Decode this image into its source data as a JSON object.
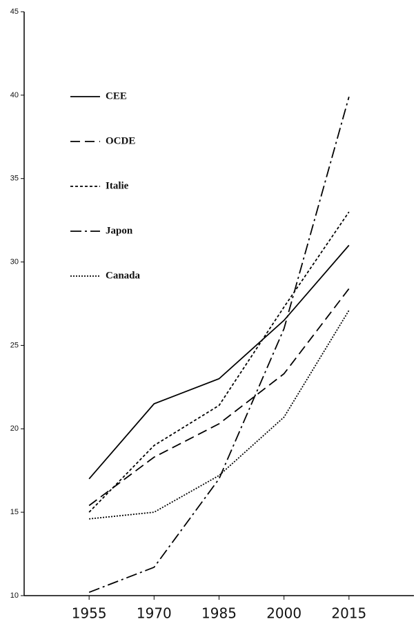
{
  "chart_data": {
    "type": "line",
    "x": [
      1955,
      1970,
      1985,
      2000,
      2015
    ],
    "xlim": [
      1940,
      2030
    ],
    "xticks": [
      1955,
      1970,
      1985,
      2000,
      2015
    ],
    "ylim": [
      10,
      45
    ],
    "yticks": [
      10,
      15,
      20,
      25,
      30,
      35,
      40,
      45
    ],
    "legend": "upper left",
    "series": [
      {
        "name": "CEE",
        "color": "#000000",
        "values": [
          17.0,
          21.5,
          23.0,
          26.5,
          31.0
        ]
      },
      {
        "name": "OCDE",
        "color": "#000000",
        "values": [
          15.4,
          18.3,
          20.3,
          23.3,
          28.4
        ]
      },
      {
        "name": "Italie",
        "color": "#000000",
        "values": [
          15.0,
          19.0,
          21.4,
          27.3,
          33.0
        ]
      },
      {
        "name": "Japon",
        "color": "#000000",
        "values": [
          10.2,
          11.7,
          17.0,
          26.0,
          39.9
        ]
      },
      {
        "name": "Canada",
        "color": "#000000",
        "values": [
          14.6,
          15.0,
          17.2,
          20.7,
          27.1
        ]
      }
    ]
  }
}
